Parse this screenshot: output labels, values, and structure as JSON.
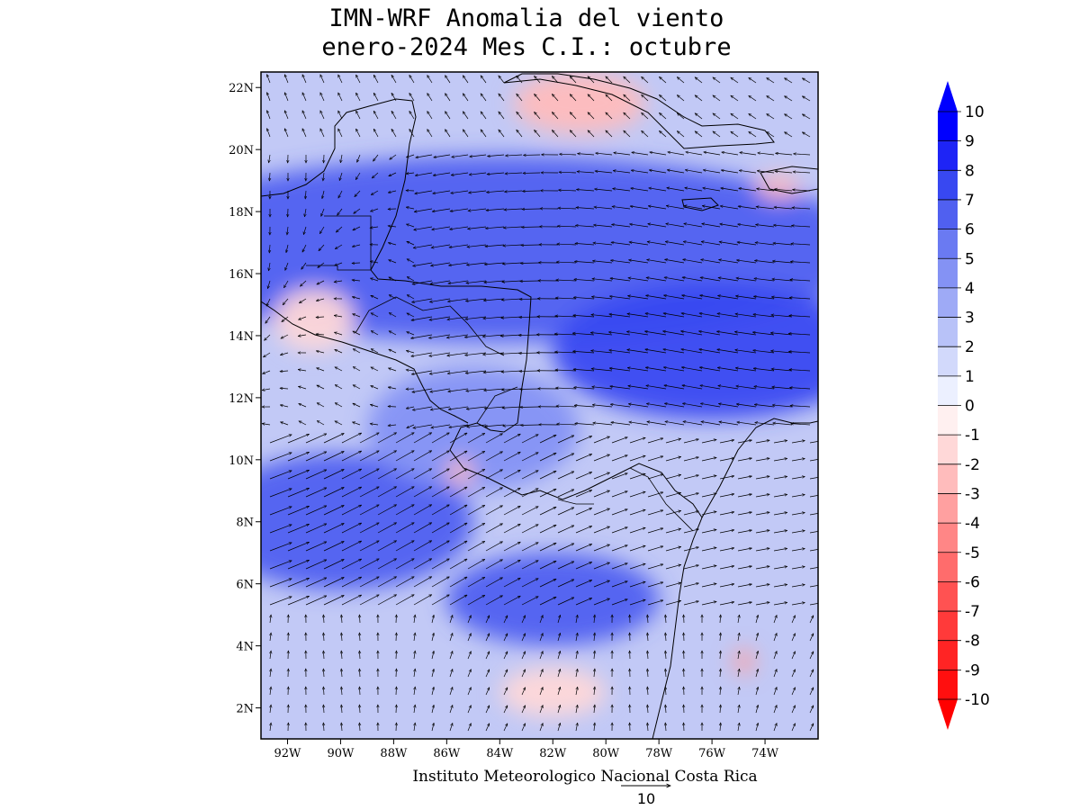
{
  "title": {
    "line1": "IMN-WRF Anomalia del viento",
    "line2": "enero-2024 Mes C.I.: octubre"
  },
  "footer": "Instituto Meteorologico Nacional Costa Rica",
  "reference_vector": {
    "value": 10,
    "label": "10"
  },
  "map": {
    "lon_range": [
      -93,
      -72
    ],
    "lat_range": [
      1,
      22.5
    ],
    "lat_ticks": [
      {
        "value": 2,
        "label": "2N"
      },
      {
        "value": 4,
        "label": "4N"
      },
      {
        "value": 6,
        "label": "6N"
      },
      {
        "value": 8,
        "label": "8N"
      },
      {
        "value": 10,
        "label": "10N"
      },
      {
        "value": 12,
        "label": "12N"
      },
      {
        "value": 14,
        "label": "14N"
      },
      {
        "value": 16,
        "label": "16N"
      },
      {
        "value": 18,
        "label": "18N"
      },
      {
        "value": 20,
        "label": "20N"
      },
      {
        "value": 22,
        "label": "22N"
      }
    ],
    "lon_ticks": [
      {
        "value": -92,
        "label": "92W"
      },
      {
        "value": -90,
        "label": "90W"
      },
      {
        "value": -88,
        "label": "88W"
      },
      {
        "value": -86,
        "label": "86W"
      },
      {
        "value": -84,
        "label": "84W"
      },
      {
        "value": -82,
        "label": "82W"
      },
      {
        "value": -80,
        "label": "80W"
      },
      {
        "value": -78,
        "label": "78W"
      },
      {
        "value": -76,
        "label": "76W"
      },
      {
        "value": -74,
        "label": "74W"
      }
    ],
    "anomaly_regions": [
      {
        "lon": -84,
        "lat": 16.8,
        "value": 6.5,
        "rlon": 14,
        "rlat": 3.0
      },
      {
        "lon": -76,
        "lat": 13.5,
        "value": 7.5,
        "rlon": 6,
        "rlat": 2.2
      },
      {
        "lon": -90,
        "lat": 8.0,
        "value": 6.5,
        "rlon": 5,
        "rlat": 2.2
      },
      {
        "lon": -82,
        "lat": 5.5,
        "value": 6.0,
        "rlon": 4,
        "rlat": 1.5
      },
      {
        "lon": -85,
        "lat": 11.0,
        "value": 4.0,
        "rlon": 4,
        "rlat": 2.0
      },
      {
        "lon": -81,
        "lat": 21.5,
        "value": -2.0,
        "rlon": 2.5,
        "rlat": 1.0
      },
      {
        "lon": -91,
        "lat": 14.5,
        "value": -1.5,
        "rlon": 1.5,
        "rlat": 1.0
      },
      {
        "lon": -85.5,
        "lat": 9.6,
        "value": -2.0,
        "rlon": 0.5,
        "rlat": 0.4
      },
      {
        "lon": -74.8,
        "lat": 3.5,
        "value": -3.0,
        "rlon": 0.4,
        "rlat": 0.4
      },
      {
        "lon": -73.5,
        "lat": 18.8,
        "value": -2.0,
        "rlon": 0.8,
        "rlat": 0.4
      },
      {
        "lon": -82,
        "lat": 2.5,
        "value": -1.0,
        "rlon": 2.0,
        "rlat": 0.8
      }
    ]
  },
  "colorbar": {
    "levels": [
      "10",
      "9",
      "8",
      "7",
      "6",
      "5",
      "4",
      "3",
      "2",
      "1",
      "0",
      "-1",
      "-2",
      "-3",
      "-4",
      "-5",
      "-6",
      "-7",
      "-8",
      "-9",
      "-10"
    ],
    "colors": [
      "#0000ff",
      "#1e24f6",
      "#3848f1",
      "#5060f0",
      "#6a7af2",
      "#8492f4",
      "#9eaaf6",
      "#b8c2f8",
      "#d2d9fb",
      "#ecf0ff",
      "#fff0f0",
      "#ffd8d8",
      "#ffbcbc",
      "#ffa0a0",
      "#ff8686",
      "#ff6c6c",
      "#ff5252",
      "#ff3a3a",
      "#ff2424",
      "#ff0f0f"
    ],
    "top_arrow_color": "#0000ff",
    "bottom_arrow_color": "#ff0000"
  }
}
